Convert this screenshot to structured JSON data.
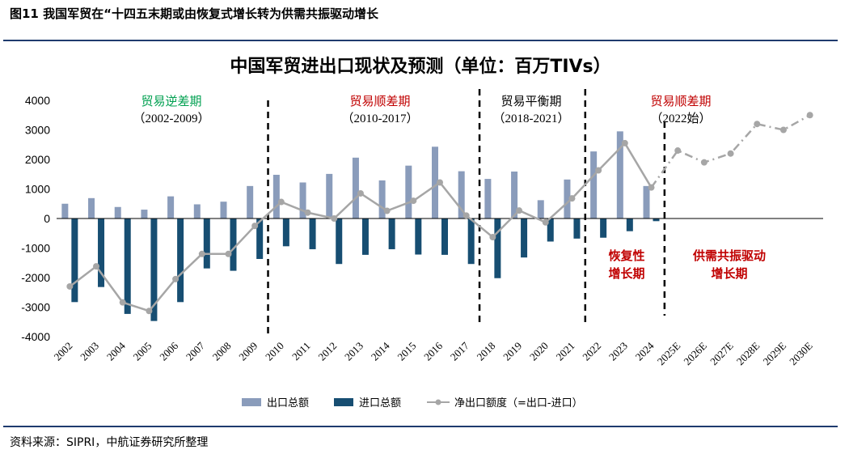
{
  "figure": {
    "title": "图11  我国军贸在“十四五末期或由恢复式增长转为供需共振驱动增长",
    "source": "资料来源：SIPRI，中航证券研究所整理"
  },
  "colors": {
    "export": "#8a9cbb",
    "import": "#174e72",
    "net": "#a6a6a6",
    "annotation_green": "#00a050",
    "annotation_red": "#c00000",
    "annotation_black": "#000000",
    "rule": "#1f3b6e"
  },
  "annotations": {
    "period1": {
      "name": "贸易逆差期",
      "years": "（2002-2009）"
    },
    "period2": {
      "name": "贸易顺差期",
      "years": "（2010-2017）"
    },
    "period3": {
      "name": "贸易平衡期",
      "years": "（2018-2021）"
    },
    "period4": {
      "name": "贸易顺差期",
      "years": "（2022始）"
    },
    "phase1": {
      "line1": "恢复性",
      "line2": "增长期"
    },
    "phase2": {
      "line1": "供需共振驱动",
      "line2": "增长期"
    }
  },
  "chart_data": {
    "type": "bar",
    "title": "中国军贸进出口现状及预测（单位：百万TIVs）",
    "categories": [
      "2002",
      "2003",
      "2004",
      "2005",
      "2006",
      "2007",
      "2008",
      "2009",
      "2010",
      "2011",
      "2012",
      "2013",
      "2014",
      "2015",
      "2016",
      "2017",
      "2018",
      "2019",
      "2020",
      "2021",
      "2022",
      "2023",
      "2024",
      "2025E",
      "2026E",
      "2027E",
      "2028E",
      "2029E",
      "2030E"
    ],
    "series": [
      {
        "name": "出口总额",
        "kind": "bar",
        "values": [
          500,
          690,
          390,
          300,
          750,
          480,
          570,
          1100,
          1480,
          1220,
          1510,
          2060,
          1290,
          1790,
          2430,
          1600,
          1340,
          1590,
          620,
          1320,
          2270,
          2950,
          1100,
          null,
          null,
          null,
          null,
          null,
          null
        ]
      },
      {
        "name": "进口总额",
        "kind": "bar",
        "values": [
          -2830,
          -2320,
          -3230,
          -3470,
          -2830,
          -1690,
          -1770,
          -1370,
          -940,
          -1040,
          -1540,
          -1230,
          -1040,
          -1220,
          -1230,
          -1540,
          -2020,
          -1320,
          -780,
          -680,
          -650,
          -430,
          -90,
          null,
          null,
          null,
          null,
          null,
          null
        ]
      },
      {
        "name": "净出口额度（=出口-进口）",
        "kind": "line",
        "values": [
          -2300,
          -1620,
          -2840,
          -3130,
          -2050,
          -1200,
          -1200,
          -250,
          560,
          200,
          0,
          850,
          260,
          600,
          1220,
          100,
          -630,
          270,
          -130,
          680,
          1630,
          2550,
          1050,
          null,
          null,
          null,
          null,
          null,
          null
        ]
      },
      {
        "name": "净出口额度（=出口-进口）",
        "kind": "line-forecast",
        "values": [
          null,
          null,
          null,
          null,
          null,
          null,
          null,
          null,
          null,
          null,
          null,
          null,
          null,
          null,
          null,
          null,
          null,
          null,
          null,
          null,
          null,
          null,
          1050,
          2300,
          1900,
          2200,
          3200,
          3000,
          3500
        ]
      }
    ],
    "yticks": [
      4000,
      3000,
      2000,
      1000,
      0,
      -1000,
      -2000,
      -3000,
      -4000
    ],
    "ylim": [
      -4000,
      4000
    ],
    "grid": false,
    "legend_position": "bottom",
    "dividers_after": [
      "2009",
      "2017",
      "2021",
      "2024"
    ]
  }
}
